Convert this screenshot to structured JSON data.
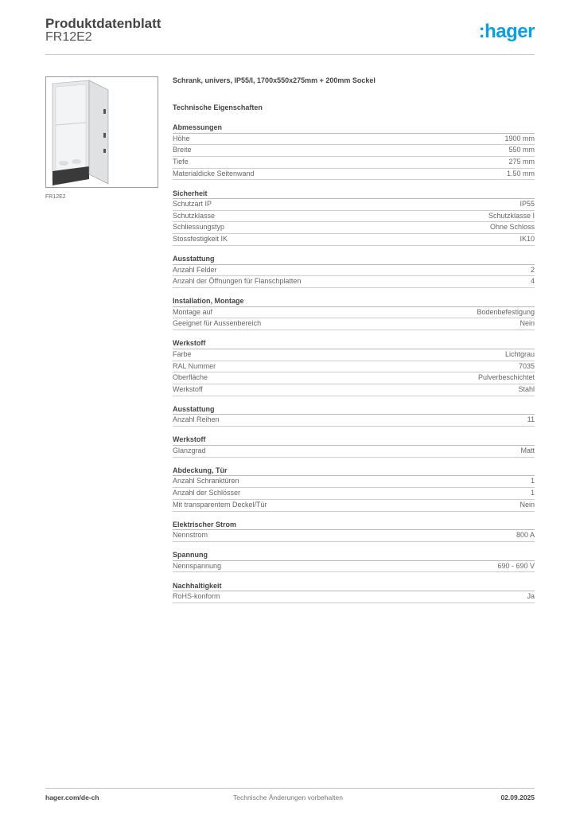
{
  "header": {
    "title": "Produktdatenblatt",
    "code": "FR12E2",
    "logo": ":hager",
    "logo_color": "#0a9fe0"
  },
  "product": {
    "image_caption": "FR12E2",
    "description": "Schrank, univers, IP55/I, 1700x550x275mm + 200mm Sockel",
    "tech_heading": "Technische Eigenschaften"
  },
  "sections": [
    {
      "title": "Abmessungen",
      "rows": [
        [
          "Höhe",
          "1900 mm"
        ],
        [
          "Breite",
          "550 mm"
        ],
        [
          "Tiefe",
          "275 mm"
        ],
        [
          "Materialdicke Seitenwand",
          "1.50 mm"
        ]
      ]
    },
    {
      "title": "Sicherheit",
      "rows": [
        [
          "Schutzart IP",
          "IP55"
        ],
        [
          "Schutzklasse",
          "Schutzklasse I"
        ],
        [
          "Schliessungstyp",
          "Ohne Schloss"
        ],
        [
          "Stossfestigkeit IK",
          "IK10"
        ]
      ]
    },
    {
      "title": "Ausstattung",
      "rows": [
        [
          "Anzahl Felder",
          "2"
        ],
        [
          "Anzahl der Öffnungen für Flanschplatten",
          "4"
        ]
      ]
    },
    {
      "title": "Installation, Montage",
      "rows": [
        [
          "Montage auf",
          "Bodenbefestigung"
        ],
        [
          "Geeignet für Aussenbereich",
          "Nein"
        ]
      ]
    },
    {
      "title": "Werkstoff",
      "rows": [
        [
          "Farbe",
          "Lichtgrau"
        ],
        [
          "RAL Nummer",
          "7035"
        ],
        [
          "Oberfläche",
          "Pulverbeschichtet"
        ],
        [
          "Werkstoff",
          "Stahl"
        ]
      ]
    },
    {
      "title": "Ausstattung",
      "rows": [
        [
          "Anzahl Reihen",
          "11"
        ]
      ]
    },
    {
      "title": "Werkstoff",
      "rows": [
        [
          "Glanzgrad",
          "Matt"
        ]
      ]
    },
    {
      "title": "Abdeckung, Tür",
      "rows": [
        [
          "Anzahl Schranktüren",
          "1"
        ],
        [
          "Anzahl der Schlösser",
          "1"
        ],
        [
          "Mit transparentem Deckel/Tür",
          "Nein"
        ]
      ]
    },
    {
      "title": "Elektrischer Strom",
      "rows": [
        [
          "Nennstrom",
          "800 A"
        ]
      ]
    },
    {
      "title": "Spannung",
      "rows": [
        [
          "Nennspannung",
          "690 - 690 V"
        ]
      ]
    },
    {
      "title": "Nachhaltigkeit",
      "rows": [
        [
          "RoHS-konform",
          "Ja"
        ]
      ]
    }
  ],
  "footer": {
    "website": "hager.com/de-ch",
    "note": "Technische Änderungen vorbehalten",
    "date": "02.09.2025"
  }
}
